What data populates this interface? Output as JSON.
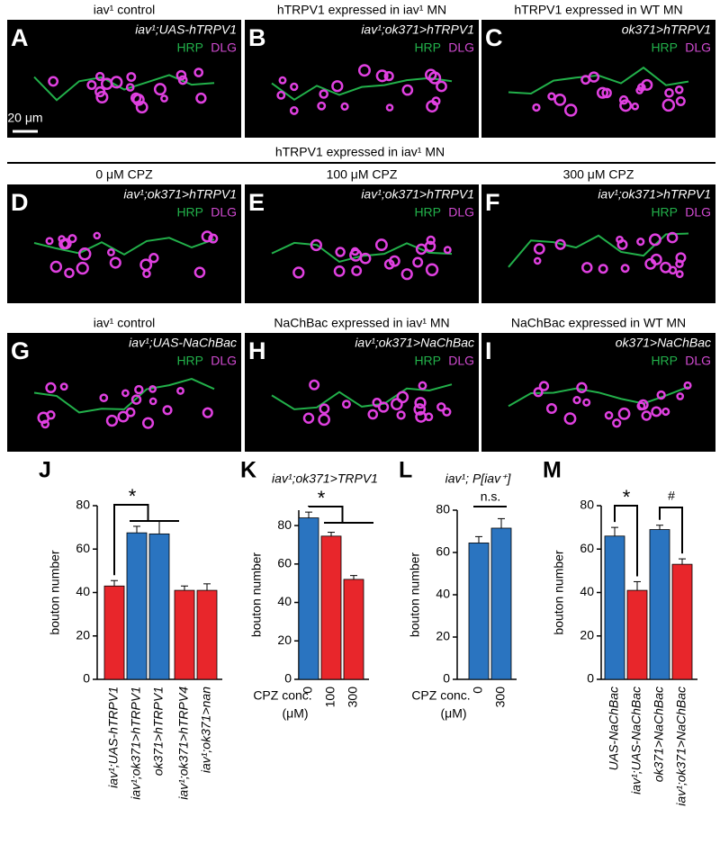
{
  "section_heading": "hTRPV1 expressed in iav¹ MN",
  "panels": [
    {
      "label": "A",
      "heading": "iav¹ control",
      "genotype": "iav¹;UAS-hTRPV1",
      "markers": [
        "HRP",
        "DLG"
      ],
      "scale_bar": "20 μm"
    },
    {
      "label": "B",
      "heading": "hTRPV1 expressed in iav¹ MN",
      "genotype": "iav¹;ok371>hTRPV1",
      "markers": [
        "HRP",
        "DLG"
      ]
    },
    {
      "label": "C",
      "heading": "hTRPV1 expressed in WT MN",
      "genotype": "ok371>hTRPV1",
      "markers": [
        "HRP",
        "DLG"
      ]
    },
    {
      "label": "D",
      "heading": "0 μM CPZ",
      "genotype": "iav¹;ok371>hTRPV1",
      "markers": [
        "HRP",
        "DLG"
      ]
    },
    {
      "label": "E",
      "heading": "100 μM CPZ",
      "genotype": "iav¹;ok371>hTRPV1",
      "markers": [
        "HRP",
        "DLG"
      ]
    },
    {
      "label": "F",
      "heading": "300 μM CPZ",
      "genotype": "iav¹;ok371>hTRPV1",
      "markers": [
        "HRP",
        "DLG"
      ]
    },
    {
      "label": "G",
      "heading": "iav¹ control",
      "genotype": "iav¹;UAS-NaChBac",
      "markers": [
        "HRP",
        "DLG"
      ]
    },
    {
      "label": "H",
      "heading": "NaChBac expressed in iav¹ MN",
      "genotype": "iav¹;ok371>NaChBac",
      "markers": [
        "HRP",
        "DLG"
      ]
    },
    {
      "label": "I",
      "heading": "NaChBac expressed in WT MN",
      "genotype": "ok371>NaChBac",
      "markers": [
        "HRP",
        "DLG"
      ]
    }
  ],
  "chart_data": [
    {
      "type": "bar",
      "panel_label": "J",
      "y_label": "bouton number",
      "categories": [
        "iav¹;UAS-hTRPV1",
        "iav¹;ok371>hTRPV1",
        "ok371>hTRPV1",
        "iav¹;ok371>hTRPV4",
        "iav¹;ok371>nan"
      ],
      "values": [
        43,
        67.5,
        67,
        41,
        41
      ],
      "errors": [
        2.5,
        3,
        6,
        2,
        3
      ],
      "colors": [
        "#e8262b",
        "#2a74c0",
        "#2a74c0",
        "#e8262b",
        "#e8262b"
      ],
      "ylim": [
        0,
        80
      ],
      "yticks": [
        0,
        20,
        40,
        60,
        80
      ],
      "annotations": [
        "*"
      ]
    },
    {
      "type": "bar",
      "panel_label": "K",
      "title": "iav¹;ok371>TRPV1",
      "y_label": "bouton number",
      "x_label": [
        "CPZ conc.",
        "(μM)"
      ],
      "categories": [
        "0",
        "100",
        "300"
      ],
      "values": [
        84,
        74.5,
        52
      ],
      "errors": [
        3,
        2,
        2
      ],
      "colors": [
        "#2a74c0",
        "#e8262b",
        "#e8262b"
      ],
      "ylim": [
        0,
        88
      ],
      "yticks": [
        0,
        20,
        40,
        60,
        80
      ],
      "annotations": [
        "*"
      ]
    },
    {
      "type": "bar",
      "panel_label": "L",
      "title": "iav¹; P[iav⁺]",
      "y_label": "bouton number",
      "x_label": [
        "CPZ conc.",
        "(μM)"
      ],
      "categories": [
        "0",
        "300"
      ],
      "values": [
        64.5,
        71.5
      ],
      "errors": [
        3,
        4.5
      ],
      "colors": [
        "#2a74c0",
        "#2a74c0"
      ],
      "ylim": [
        0,
        80
      ],
      "yticks": [
        0,
        20,
        40,
        60,
        80
      ],
      "annotations": [
        "n.s."
      ]
    },
    {
      "type": "bar",
      "panel_label": "M",
      "y_label": "bouton number",
      "categories": [
        "UAS-NaChBac",
        "iav¹;UAS-NaChBac",
        "ok371>NaChBac",
        "iav¹;ok371>NaChBac"
      ],
      "values": [
        66,
        41,
        69,
        53
      ],
      "errors": [
        4,
        4,
        2,
        2.5
      ],
      "colors": [
        "#2a74c0",
        "#e8262b",
        "#2a74c0",
        "#e8262b"
      ],
      "ylim": [
        0,
        80
      ],
      "yticks": [
        0,
        20,
        40,
        60,
        80
      ],
      "annotations": [
        "*",
        "#"
      ]
    }
  ]
}
